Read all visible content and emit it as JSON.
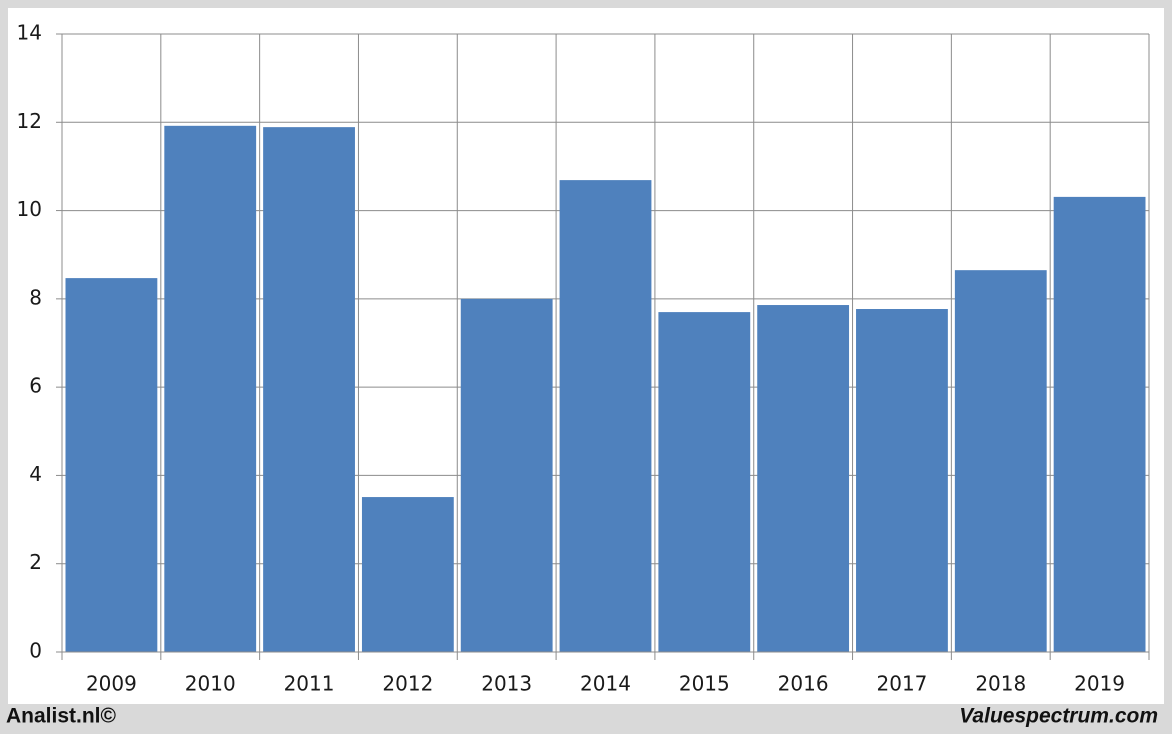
{
  "chart_data": {
    "type": "bar",
    "categories": [
      "2009",
      "2010",
      "2011",
      "2012",
      "2013",
      "2014",
      "2015",
      "2016",
      "2017",
      "2018",
      "2019"
    ],
    "values": [
      8.47,
      11.92,
      11.89,
      3.51,
      8.0,
      10.69,
      7.7,
      7.86,
      7.77,
      8.65,
      10.31
    ],
    "color": "#4f81bd",
    "ylim": [
      0,
      14
    ],
    "yticks": [
      0,
      2,
      4,
      6,
      8,
      10,
      12,
      14
    ],
    "grid": true,
    "source_left": "Analist.nl©",
    "source_right": "Valuespectrum.com"
  }
}
